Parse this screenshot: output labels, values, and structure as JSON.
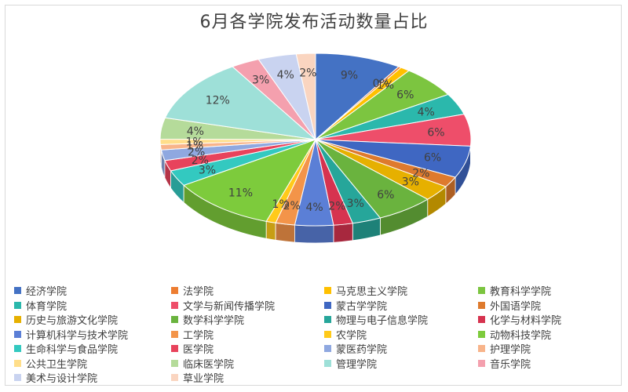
{
  "chart_data": {
    "type": "pie",
    "title": "6月各学院发布活动数量占比",
    "slices": [
      {
        "name": "经济学院",
        "label": "9%",
        "value": 9,
        "color": "#4472C4"
      },
      {
        "name": "法学院",
        "label": "0%",
        "value": 0.3,
        "color": "#ED7D31"
      },
      {
        "name": "马克思主义学院",
        "label": "1%",
        "value": 1,
        "color": "#FFC000"
      },
      {
        "name": "教育科学学院",
        "label": "6%",
        "value": 6,
        "color": "#7CC540"
      },
      {
        "name": "体育学院",
        "label": "4%",
        "value": 4,
        "color": "#2BB8AC"
      },
      {
        "name": "文学与新闻传播学院",
        "label": "6%",
        "value": 6,
        "color": "#EE4E6A"
      },
      {
        "name": "蒙古学学院",
        "label": "6%",
        "value": 6,
        "color": "#3F67C2"
      },
      {
        "name": "外国语学院",
        "label": "2%",
        "value": 2,
        "color": "#DE7A2D"
      },
      {
        "name": "历史与旅游文化学院",
        "label": "3%",
        "value": 3,
        "color": "#E6B000"
      },
      {
        "name": "数学科学学院",
        "label": "6%",
        "value": 6,
        "color": "#6AB33E"
      },
      {
        "name": "物理与电子信息学院",
        "label": "3%",
        "value": 3,
        "color": "#26A69A"
      },
      {
        "name": "化学与材料学院",
        "label": "2%",
        "value": 2,
        "color": "#D6334F"
      },
      {
        "name": "计算机科学与技术学院",
        "label": "4%",
        "value": 4,
        "color": "#5B7FD6"
      },
      {
        "name": "工学院",
        "label": "2%",
        "value": 2,
        "color": "#F39449"
      },
      {
        "name": "农学院",
        "label": "1%",
        "value": 1,
        "color": "#FFCA1A"
      },
      {
        "name": "动物科技学院",
        "label": "11%",
        "value": 11,
        "color": "#7DCB3C"
      },
      {
        "name": "生命科学与食品学院",
        "label": "3%",
        "value": 3,
        "color": "#33C9C0"
      },
      {
        "name": "医学院",
        "label": "2%",
        "value": 2,
        "color": "#E8435C"
      },
      {
        "name": "蒙医药学院",
        "label": "2%",
        "value": 2,
        "color": "#8FA8E0"
      },
      {
        "name": "护理学院",
        "label": "1%",
        "value": 1,
        "color": "#F8B48A"
      },
      {
        "name": "公共卫生学院",
        "label": "1%",
        "value": 1,
        "color": "#FFDE8A"
      },
      {
        "name": "临床医学院",
        "label": "4%",
        "value": 4,
        "color": "#B5DB9A"
      },
      {
        "name": "管理学院",
        "label": "12%",
        "value": 12,
        "color": "#9EE0D8"
      },
      {
        "name": "音乐学院",
        "label": "3%",
        "value": 3,
        "color": "#F4A0AE"
      },
      {
        "name": "美术与设计学院",
        "label": "4%",
        "value": 4,
        "color": "#C9D3F0"
      },
      {
        "name": "草业学院",
        "label": "2%",
        "value": 2,
        "color": "#FAD5C0"
      }
    ]
  }
}
